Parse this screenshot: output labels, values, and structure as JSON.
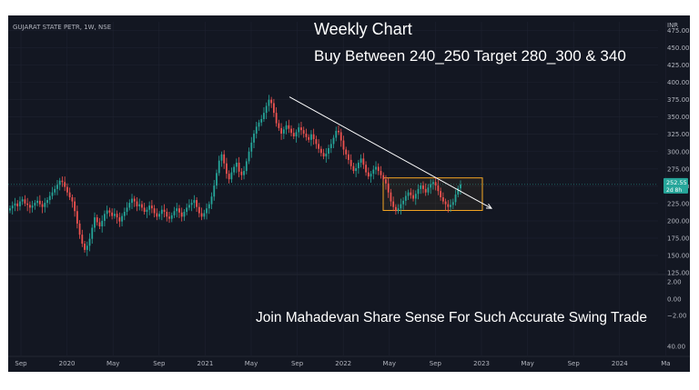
{
  "colors": {
    "background": "#131722",
    "up": "#26a69a",
    "down": "#ef5350",
    "grid": "#1e2230",
    "price_label_bg": "#26a69a",
    "box": "#f5a623",
    "trendline": "#ffffff"
  },
  "chart_data": {
    "type": "candlestick",
    "symbol": "GUJARAT STATE PETR, 1W, NSE",
    "currency": "INR",
    "annotations": {
      "title": "Weekly Chart",
      "subtitle": "Buy Between  240_250 Target  280_300 & 340",
      "footer": "Join Mahadevan Share Sense  For Such Accurate Swing Trade"
    },
    "price_axis": {
      "ylim": [
        125,
        487.5
      ],
      "ticks": [
        "475.00",
        "450.00",
        "425.00",
        "400.00",
        "375.00",
        "350.00",
        "325.00",
        "300.00",
        "275.00",
        "250.00",
        "225.00",
        "200.00",
        "175.00",
        "150.00",
        "125.00"
      ]
    },
    "indicator_axis": {
      "ticks": [
        "2.00",
        "0.00",
        "−2.00",
        "40.00"
      ]
    },
    "current_price": {
      "value": 252.55,
      "label": "252.55",
      "countdown": "2d 8h"
    },
    "x_axis": {
      "labels": [
        "Sep",
        "2020",
        "May",
        "Sep",
        "2021",
        "May",
        "Sep",
        "2022",
        "May",
        "Sep",
        "2023",
        "May",
        "Sep",
        "2024",
        "Ma"
      ]
    },
    "trendline": {
      "from": {
        "date": "2021-09-06",
        "price": 379
      },
      "to": {
        "date": "2023-01-02",
        "price": 218
      }
    },
    "buy_zone": {
      "from": "2022-05-02",
      "to": "2023-01-02",
      "price_low": 215,
      "price_high": 262
    },
    "series": [
      {
        "name": "price",
        "closes": [
          218,
          222,
          225,
          221,
          228,
          231,
          225,
          223,
          219,
          222,
          226,
          229,
          224,
          220,
          226,
          230,
          236,
          241,
          246,
          252,
          258,
          256,
          249,
          241,
          234,
          228,
          214,
          196,
          180,
          167,
          158,
          164,
          174,
          190,
          205,
          198,
          192,
          200,
          210,
          215,
          212,
          207,
          210,
          205,
          199,
          207,
          213,
          219,
          226,
          232,
          228,
          221,
          224,
          219,
          213,
          216,
          222,
          218,
          211,
          206,
          210,
          216,
          213,
          206,
          203,
          208,
          214,
          218,
          212,
          206,
          213,
          219,
          223,
          226,
          230,
          220,
          211,
          206,
          211,
          218,
          224,
          235,
          251,
          269,
          287,
          296,
          283,
          268,
          260,
          270,
          278,
          284,
          271,
          266,
          272,
          286,
          300,
          313,
          326,
          336,
          342,
          347,
          356,
          366,
          375,
          370,
          356,
          341,
          334,
          326,
          332,
          338,
          333,
          327,
          322,
          328,
          335,
          331,
          326,
          321,
          317,
          325,
          318,
          311,
          304,
          298,
          293,
          297,
          305,
          311,
          320,
          330,
          328,
          316,
          303,
          296,
          288,
          279,
          272,
          276,
          284,
          290,
          281,
          270,
          264,
          268,
          274,
          278,
          272,
          266,
          260,
          254,
          241,
          228,
          220,
          214,
          218,
          224,
          229,
          236,
          241,
          237,
          232,
          239,
          246,
          251,
          246,
          241,
          248,
          253,
          256,
          251,
          243,
          234,
          228,
          224,
          220,
          223,
          227,
          238,
          247,
          252.55
        ]
      }
    ]
  }
}
